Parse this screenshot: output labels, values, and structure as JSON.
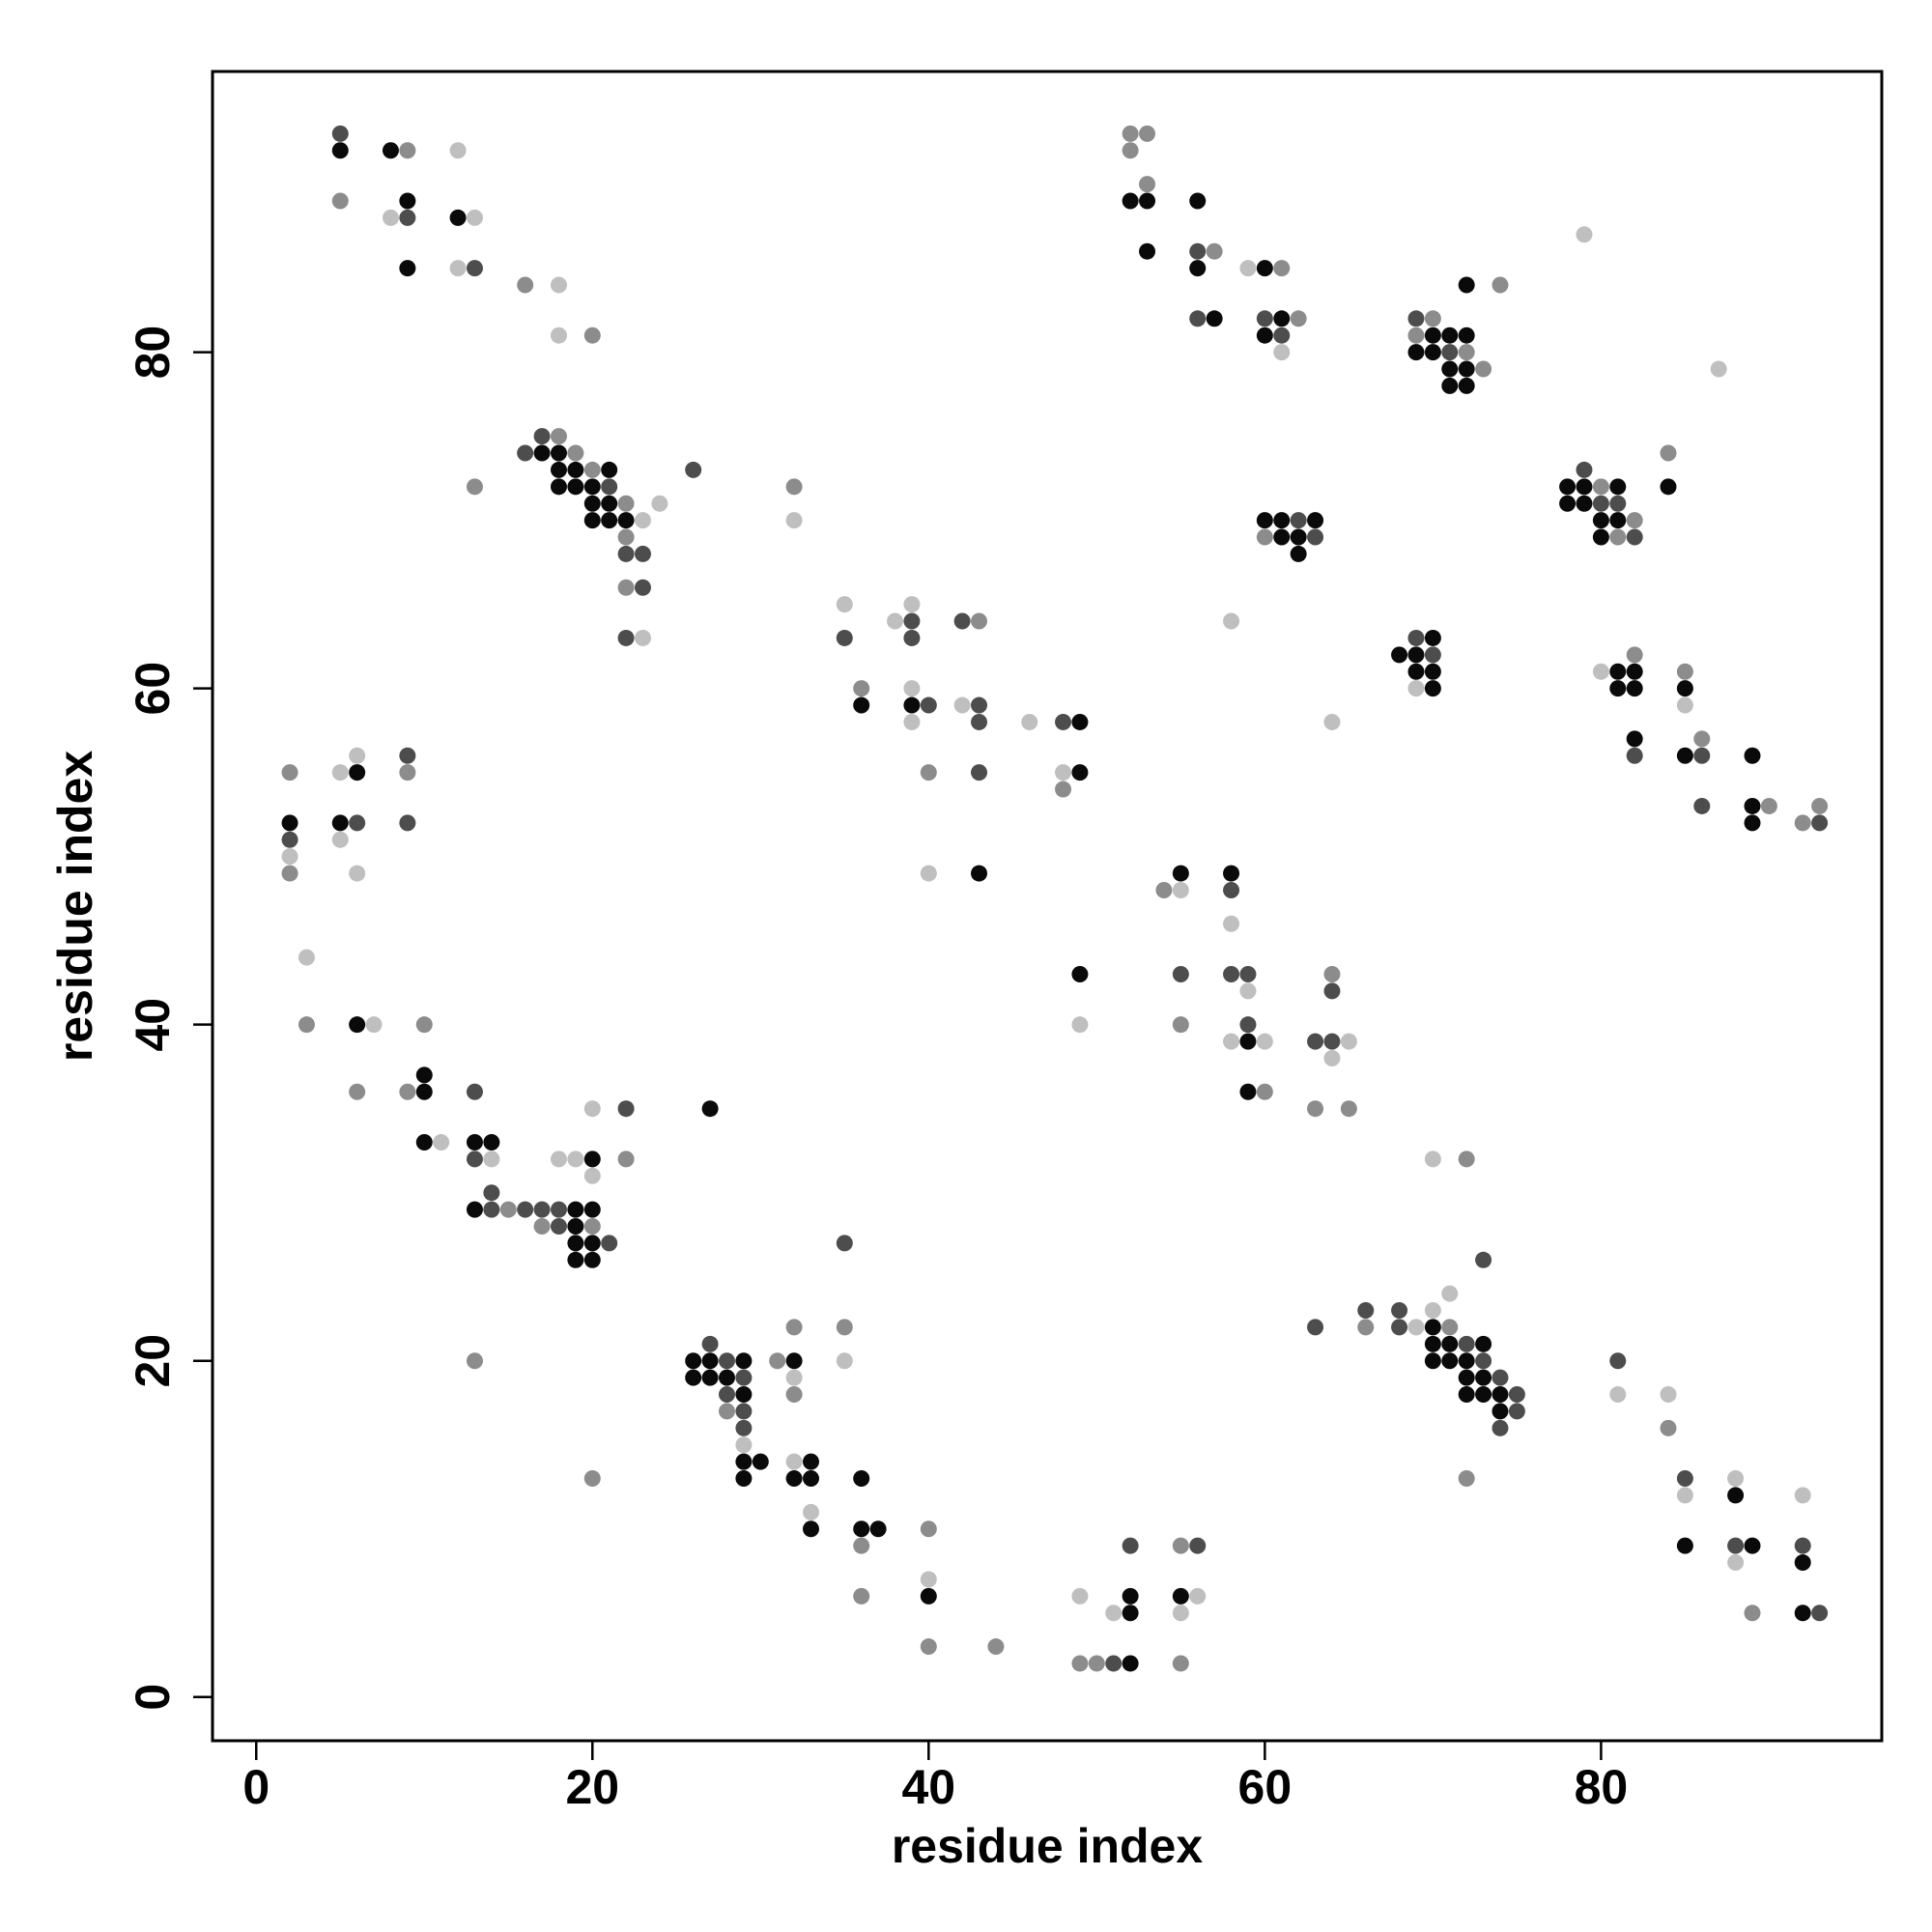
{
  "chart_data": {
    "type": "scatter",
    "xlabel": "residue index",
    "ylabel": "residue index",
    "xlim": [
      -2.6,
      96.7
    ],
    "ylim": [
      -2.6,
      96.7
    ],
    "xticks": [
      0,
      20,
      40,
      60,
      80
    ],
    "yticks": [
      0,
      20,
      40,
      60,
      80
    ],
    "series": [
      {
        "color": "#bfbfbf",
        "x": [
          8,
          12,
          13,
          12,
          18,
          18,
          24,
          23,
          23,
          32,
          35,
          38,
          39,
          39,
          39,
          42,
          40,
          46,
          48,
          5,
          6,
          5,
          2,
          6,
          3,
          7,
          11,
          14,
          18,
          19,
          20,
          20,
          29,
          32,
          32,
          33,
          35,
          40,
          49,
          51,
          56,
          55,
          59,
          61,
          58,
          64,
          79,
          87,
          69,
          80,
          85,
          49,
          55,
          58,
          59,
          58,
          60,
          65,
          64,
          70,
          71,
          69,
          70,
          81,
          84,
          85,
          88,
          88,
          92
        ],
        "y": [
          88,
          92,
          88,
          85,
          84,
          81,
          71,
          70,
          63,
          70,
          65,
          64,
          65,
          60,
          58,
          59,
          49,
          58,
          55,
          55,
          56,
          51,
          50,
          49,
          44,
          40,
          33,
          32,
          32,
          32,
          31,
          35,
          15,
          19,
          14,
          11,
          20,
          7,
          6,
          5,
          6,
          5,
          85,
          80,
          64,
          58,
          87,
          79,
          60,
          61,
          59,
          40,
          48,
          46,
          42,
          39,
          39,
          39,
          38,
          32,
          24,
          22,
          23,
          18,
          18,
          12,
          13,
          8,
          12
        ]
      },
      {
        "color": "#8c8c8c",
        "x": [
          5,
          9,
          16,
          20,
          13,
          19,
          18,
          20,
          22,
          22,
          22,
          32,
          36,
          40,
          48,
          2,
          9,
          2,
          3,
          10,
          6,
          9,
          15,
          17,
          20,
          22,
          13,
          20,
          31,
          32,
          32,
          28,
          35,
          36,
          36,
          40,
          40,
          44,
          49,
          50,
          55,
          55,
          52,
          53,
          52,
          53,
          57,
          61,
          62,
          60,
          70,
          69,
          72,
          73,
          74,
          80,
          81,
          82,
          84,
          82,
          85,
          86,
          90,
          92,
          93,
          54,
          55,
          60,
          64,
          63,
          65,
          72,
          66,
          71,
          72,
          84,
          89,
          43
        ],
        "y": [
          89,
          92,
          84,
          81,
          72,
          74,
          75,
          73,
          71,
          69,
          66,
          72,
          60,
          55,
          54,
          55,
          55,
          49,
          40,
          40,
          36,
          36,
          29,
          28,
          28,
          32,
          20,
          13,
          20,
          22,
          18,
          17,
          22,
          9,
          6,
          10,
          3,
          3,
          2,
          2,
          9,
          2,
          93,
          93,
          92,
          90,
          86,
          85,
          82,
          69,
          82,
          81,
          80,
          79,
          84,
          72,
          69,
          70,
          74,
          62,
          61,
          57,
          53,
          52,
          53,
          48,
          40,
          36,
          43,
          35,
          35,
          32,
          22,
          22,
          13,
          16,
          5,
          64
        ]
      },
      {
        "color": "#4d4d4d",
        "x": [
          5,
          9,
          13,
          16,
          17,
          21,
          22,
          23,
          23,
          22,
          26,
          35,
          39,
          39,
          40,
          42,
          43,
          43,
          43,
          48,
          9,
          6,
          9,
          2,
          13,
          13,
          14,
          14,
          16,
          17,
          18,
          18,
          21,
          22,
          27,
          28,
          29,
          28,
          29,
          29,
          35,
          52,
          51,
          56,
          56,
          56,
          60,
          61,
          62,
          63,
          69,
          71,
          69,
          70,
          79,
          80,
          81,
          82,
          82,
          86,
          86,
          93,
          58,
          55,
          58,
          59,
          59,
          63,
          64,
          64,
          73,
          63,
          66,
          68,
          68,
          72,
          73,
          74,
          75,
          75,
          74,
          81,
          85,
          88,
          92,
          93
        ],
        "y": [
          93,
          88,
          85,
          74,
          75,
          72,
          68,
          68,
          66,
          63,
          73,
          63,
          64,
          63,
          59,
          64,
          59,
          58,
          55,
          58,
          56,
          52,
          52,
          51,
          36,
          32,
          30,
          29,
          29,
          29,
          29,
          28,
          27,
          35,
          21,
          20,
          19,
          18,
          17,
          16,
          27,
          9,
          2,
          9,
          86,
          82,
          82,
          81,
          70,
          69,
          82,
          80,
          63,
          62,
          73,
          71,
          71,
          69,
          56,
          56,
          53,
          52,
          48,
          43,
          43,
          43,
          40,
          39,
          39,
          42,
          26,
          22,
          23,
          23,
          22,
          21,
          20,
          19,
          18,
          17,
          16,
          20,
          13,
          9,
          9,
          5
        ]
      },
      {
        "color": "#0a0a0a",
        "x": [
          5,
          8,
          9,
          9,
          12,
          17,
          18,
          18,
          19,
          21,
          18,
          19,
          20,
          20,
          21,
          20,
          21,
          22,
          36,
          39,
          43,
          49,
          49,
          6,
          2,
          5,
          6,
          10,
          10,
          10,
          13,
          14,
          13,
          20,
          19,
          20,
          19,
          19,
          20,
          19,
          20,
          27,
          26,
          27,
          29,
          26,
          27,
          28,
          29,
          29,
          30,
          29,
          32,
          32,
          33,
          33,
          33,
          36,
          36,
          37,
          40,
          52,
          52,
          52,
          55,
          52,
          53,
          56,
          53,
          56,
          60,
          57,
          61,
          60,
          60,
          61,
          63,
          61,
          62,
          62,
          70,
          71,
          72,
          69,
          70,
          71,
          72,
          71,
          72,
          72,
          68,
          70,
          69,
          69,
          70,
          70,
          78,
          79,
          81,
          78,
          79,
          80,
          81,
          80,
          84,
          81,
          82,
          81,
          82,
          82,
          85,
          85,
          89,
          89,
          89,
          49,
          55,
          58,
          59,
          59,
          70,
          70,
          71,
          73,
          70,
          71,
          72,
          72,
          73,
          72,
          73,
          74,
          74,
          88,
          85,
          89,
          92,
          92
        ],
        "y": [
          92,
          92,
          89,
          85,
          88,
          74,
          74,
          73,
          73,
          73,
          72,
          72,
          72,
          71,
          71,
          70,
          70,
          70,
          59,
          59,
          49,
          58,
          55,
          55,
          52,
          52,
          40,
          37,
          36,
          33,
          33,
          33,
          29,
          32,
          29,
          29,
          28,
          27,
          27,
          26,
          26,
          35,
          20,
          20,
          20,
          19,
          19,
          19,
          18,
          14,
          14,
          13,
          20,
          13,
          14,
          13,
          10,
          13,
          10,
          10,
          6,
          5,
          6,
          2,
          6,
          89,
          89,
          89,
          86,
          85,
          85,
          82,
          82,
          81,
          70,
          70,
          70,
          69,
          69,
          68,
          81,
          81,
          81,
          80,
          80,
          79,
          79,
          78,
          78,
          84,
          62,
          63,
          62,
          61,
          61,
          60,
          72,
          72,
          72,
          71,
          71,
          70,
          70,
          69,
          72,
          61,
          61,
          60,
          60,
          57,
          60,
          56,
          56,
          53,
          52,
          43,
          49,
          49,
          39,
          36,
          22,
          21,
          21,
          21,
          20,
          20,
          20,
          19,
          19,
          18,
          18,
          18,
          17,
          12,
          9,
          9,
          8,
          5
        ]
      }
    ]
  }
}
